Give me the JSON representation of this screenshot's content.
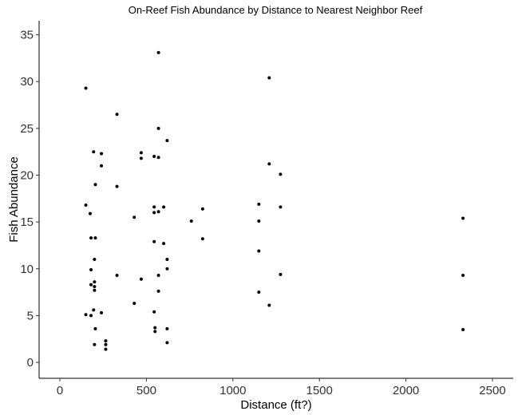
{
  "chart_data": {
    "type": "scatter",
    "title": "On-Reef Fish Abundance by Distance to Nearest Neighbor Reef",
    "xlabel": "Distance (ft?)",
    "ylabel": "Fish Abundance",
    "xlim": [
      -120,
      2620
    ],
    "ylim": [
      -1.7,
      36.5
    ],
    "xticks": [
      0,
      500,
      1000,
      1500,
      2000,
      2500
    ],
    "yticks": [
      0,
      5,
      10,
      15,
      20,
      25,
      30,
      35
    ],
    "grid": false,
    "point_color": "#000000",
    "points": [
      {
        "x": 150,
        "y": 29.3
      },
      {
        "x": 150,
        "y": 16.8
      },
      {
        "x": 150,
        "y": 5.1
      },
      {
        "x": 175,
        "y": 15.9
      },
      {
        "x": 180,
        "y": 13.3
      },
      {
        "x": 180,
        "y": 9.9
      },
      {
        "x": 180,
        "y": 8.3
      },
      {
        "x": 180,
        "y": 5.0
      },
      {
        "x": 195,
        "y": 22.5
      },
      {
        "x": 200,
        "y": 11.0
      },
      {
        "x": 200,
        "y": 8.6
      },
      {
        "x": 200,
        "y": 8.1
      },
      {
        "x": 200,
        "y": 7.7
      },
      {
        "x": 195,
        "y": 5.6
      },
      {
        "x": 200,
        "y": 1.9
      },
      {
        "x": 205,
        "y": 19.0
      },
      {
        "x": 205,
        "y": 13.3
      },
      {
        "x": 205,
        "y": 3.6
      },
      {
        "x": 240,
        "y": 22.3
      },
      {
        "x": 240,
        "y": 21.0
      },
      {
        "x": 240,
        "y": 5.3
      },
      {
        "x": 265,
        "y": 2.3
      },
      {
        "x": 265,
        "y": 1.9
      },
      {
        "x": 265,
        "y": 1.4
      },
      {
        "x": 330,
        "y": 26.5
      },
      {
        "x": 330,
        "y": 18.8
      },
      {
        "x": 330,
        "y": 9.3
      },
      {
        "x": 430,
        "y": 15.5
      },
      {
        "x": 430,
        "y": 6.3
      },
      {
        "x": 470,
        "y": 22.4
      },
      {
        "x": 470,
        "y": 21.8
      },
      {
        "x": 470,
        "y": 8.9
      },
      {
        "x": 545,
        "y": 22.0
      },
      {
        "x": 545,
        "y": 16.6
      },
      {
        "x": 545,
        "y": 16.0
      },
      {
        "x": 545,
        "y": 12.9
      },
      {
        "x": 545,
        "y": 5.4
      },
      {
        "x": 550,
        "y": 3.7
      },
      {
        "x": 550,
        "y": 3.3
      },
      {
        "x": 570,
        "y": 33.1
      },
      {
        "x": 570,
        "y": 25.0
      },
      {
        "x": 570,
        "y": 21.9
      },
      {
        "x": 570,
        "y": 16.1
      },
      {
        "x": 570,
        "y": 9.3
      },
      {
        "x": 570,
        "y": 7.6
      },
      {
        "x": 600,
        "y": 16.6
      },
      {
        "x": 600,
        "y": 12.7
      },
      {
        "x": 620,
        "y": 23.7
      },
      {
        "x": 620,
        "y": 11.0
      },
      {
        "x": 620,
        "y": 10.0
      },
      {
        "x": 620,
        "y": 3.6
      },
      {
        "x": 620,
        "y": 2.1
      },
      {
        "x": 760,
        "y": 15.1
      },
      {
        "x": 825,
        "y": 16.4
      },
      {
        "x": 825,
        "y": 13.2
      },
      {
        "x": 1150,
        "y": 16.9
      },
      {
        "x": 1150,
        "y": 15.1
      },
      {
        "x": 1150,
        "y": 11.9
      },
      {
        "x": 1150,
        "y": 7.5
      },
      {
        "x": 1210,
        "y": 30.4
      },
      {
        "x": 1210,
        "y": 21.2
      },
      {
        "x": 1210,
        "y": 6.1
      },
      {
        "x": 1275,
        "y": 20.1
      },
      {
        "x": 1275,
        "y": 16.6
      },
      {
        "x": 1275,
        "y": 9.4
      },
      {
        "x": 2330,
        "y": 15.4
      },
      {
        "x": 2330,
        "y": 9.3
      },
      {
        "x": 2330,
        "y": 3.5
      }
    ]
  }
}
